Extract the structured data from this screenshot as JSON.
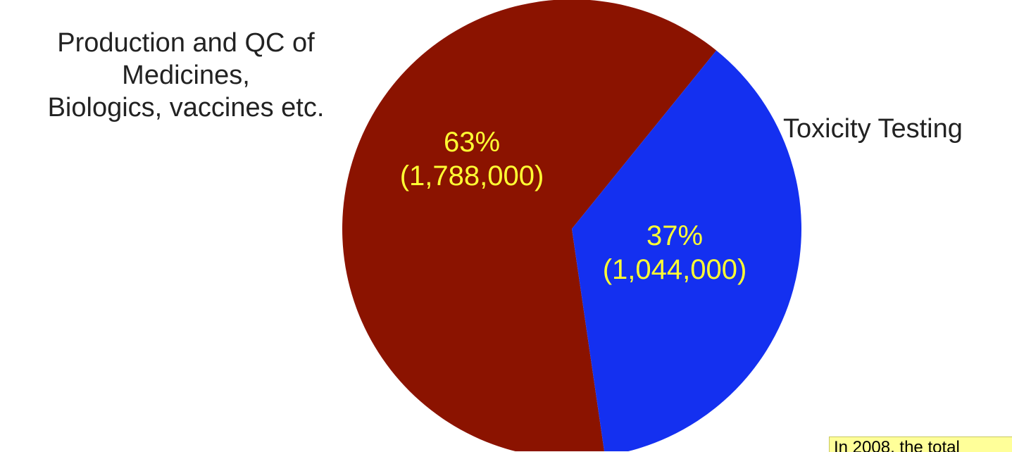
{
  "chart_data": {
    "type": "pie",
    "slices": [
      {
        "category": "Production and QC of\nMedicines,\nBiologics, vaccines etc.",
        "percent_label": "63%",
        "value_label": "(1,788,000)",
        "value": 1788000,
        "percent": 63,
        "color": "#8b1300"
      },
      {
        "category": "Toxicity Testing",
        "percent_label": "37%",
        "value_label": "(1,044,000)",
        "value": 1044000,
        "percent": 37,
        "color": "#1430f0"
      }
    ],
    "data_label_color": "#ffff33",
    "start": "top, clockwise from 12 o'clock"
  },
  "note": {
    "text": "In 2008, the total",
    "background": "#ffff99"
  }
}
